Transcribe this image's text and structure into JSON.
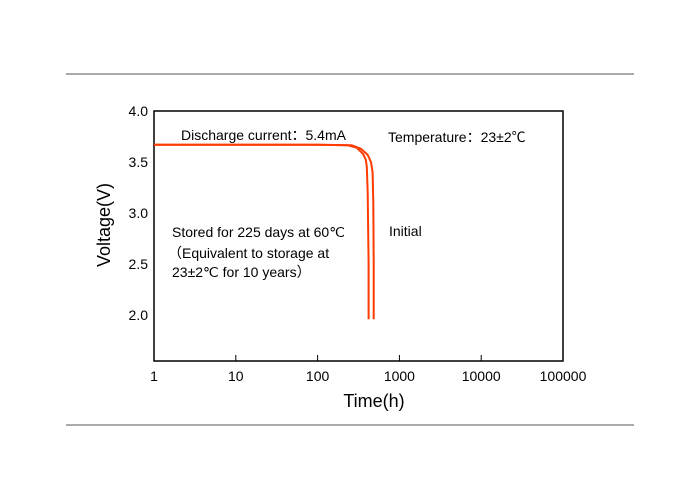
{
  "chart_data": {
    "type": "line",
    "xlabel": "Time(h)",
    "ylabel": "Voltage(V)",
    "x_scale": "log",
    "xlim": [
      1,
      100000
    ],
    "ylim": [
      1.55,
      4.0
    ],
    "x_ticks": [
      {
        "value": 1,
        "label": "1"
      },
      {
        "value": 10,
        "label": "10"
      },
      {
        "value": 100,
        "label": "100"
      },
      {
        "value": 1000,
        "label": "1000"
      },
      {
        "value": 10000,
        "label": "10000"
      },
      {
        "value": 100000,
        "label": "100000"
      }
    ],
    "y_ticks": [
      {
        "value": 4.0,
        "label": "4.0"
      },
      {
        "value": 3.5,
        "label": "3.5"
      },
      {
        "value": 3.0,
        "label": "3.0"
      },
      {
        "value": 2.5,
        "label": "2.5"
      },
      {
        "value": 2.0,
        "label": "2.0"
      }
    ],
    "grid": false,
    "series_color": "#ff3b00",
    "series": [
      {
        "x": [
          1,
          100,
          230,
          300,
          360,
          390,
          400,
          410,
          420,
          420
        ],
        "y": [
          3.67,
          3.67,
          3.665,
          3.64,
          3.58,
          3.52,
          3.45,
          3.2,
          2.5,
          1.96
        ]
      },
      {
        "x": [
          1,
          100,
          260,
          340,
          410,
          450,
          470,
          480,
          485,
          485
        ],
        "y": [
          3.67,
          3.67,
          3.665,
          3.63,
          3.57,
          3.5,
          3.4,
          3.1,
          2.5,
          1.96
        ]
      }
    ],
    "annotations": {
      "discharge": "Discharge current：5.4mA",
      "temperature": "Temperature：23±2℃",
      "initial": "Initial",
      "stored_line1": "Stored for 225 days at 60℃",
      "stored_line2": "（Equivalent to storage at",
      "stored_line3": "23±2℃ for 10 years）"
    }
  }
}
